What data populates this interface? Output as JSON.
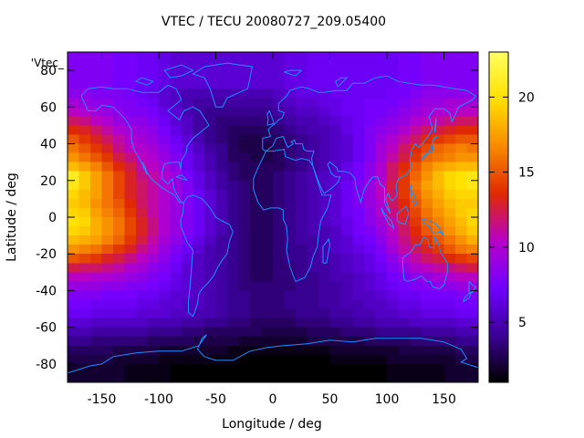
{
  "chart_data": {
    "type": "heatmap",
    "title": "VTEC / TECU 20080727_209.05400",
    "xlabel": "Longitude / deg",
    "ylabel": "Latitude / deg",
    "legend_label": "'Vtec_",
    "xlim": [
      -180,
      180
    ],
    "ylim": [
      -90,
      90
    ],
    "x_ticks": [
      -150,
      -100,
      -50,
      0,
      50,
      100,
      150
    ],
    "y_ticks": [
      -80,
      -60,
      -40,
      -20,
      0,
      20,
      40,
      60,
      80
    ],
    "colorbar": {
      "range": [
        1,
        23
      ],
      "ticks": [
        5,
        10,
        15,
        20
      ],
      "palette": [
        "#000000",
        "#3b0096",
        "#7000ff",
        "#b800c8",
        "#e02a00",
        "#f88a00",
        "#ffe000",
        "#ffff60"
      ]
    },
    "grid": false,
    "overlay": "coastlines",
    "coastline_color": "#1e90ff",
    "longitudes": [
      -175,
      -165,
      -155,
      -145,
      -135,
      -125,
      -115,
      -105,
      -95,
      -85,
      -75,
      -65,
      -55,
      -45,
      -35,
      -25,
      -15,
      -5,
      5,
      15,
      25,
      35,
      45,
      55,
      65,
      75,
      85,
      95,
      105,
      115,
      125,
      135,
      145,
      155,
      165,
      175
    ],
    "latitudes": [
      87.5,
      82.5,
      77.5,
      72.5,
      67.5,
      62.5,
      57.5,
      52.5,
      47.5,
      42.5,
      37.5,
      32.5,
      27.5,
      22.5,
      17.5,
      12.5,
      7.5,
      2.5,
      -2.5,
      -7.5,
      -12.5,
      -17.5,
      -22.5,
      -27.5,
      -32.5,
      -37.5,
      -42.5,
      -47.5,
      -52.5,
      -57.5,
      -62.5,
      -67.5,
      -72.5,
      -77.5,
      -82.5,
      -87.5
    ],
    "vtec": [
      [
        8,
        8,
        8,
        8,
        7.5,
        7.5,
        7,
        7,
        6.5,
        6,
        6,
        6,
        6,
        6,
        6,
        6,
        6,
        6,
        6,
        6.5,
        6.5,
        7,
        7,
        7,
        7,
        7,
        7,
        7,
        7,
        7.5,
        7.5,
        8,
        8,
        8,
        8,
        8
      ],
      [
        8,
        8,
        8,
        8,
        7.5,
        7.5,
        7,
        7,
        6.5,
        6,
        6,
        6,
        6,
        6,
        6,
        6,
        6,
        6,
        6,
        6.5,
        6.5,
        7,
        7,
        7,
        7,
        7,
        7,
        7,
        7,
        7.5,
        7.5,
        8,
        8,
        8,
        8,
        8
      ],
      [
        8,
        8,
        8,
        8,
        7.5,
        7.5,
        7,
        7,
        6.5,
        6,
        6,
        6,
        6,
        6,
        6,
        6,
        6,
        6,
        6,
        6.5,
        6.5,
        7,
        7,
        7,
        7,
        7,
        7,
        7,
        7,
        7.5,
        7.5,
        8,
        8,
        8,
        8,
        8
      ],
      [
        8,
        8,
        8,
        8,
        7.5,
        7.5,
        7,
        7,
        6.5,
        6,
        6,
        6,
        6,
        6,
        6,
        6,
        6,
        6,
        6,
        6.5,
        6.5,
        7,
        7,
        7,
        7,
        7,
        7,
        7,
        7,
        7.5,
        7.5,
        8,
        8,
        8,
        8,
        8
      ],
      [
        8.5,
        8.5,
        8,
        8,
        8,
        7.5,
        7,
        6.5,
        6,
        5.5,
        5,
        5,
        5,
        5,
        5,
        5,
        5,
        5,
        5.5,
        6,
        6.5,
        6.5,
        6.5,
        7,
        7,
        7,
        7,
        7,
        7.5,
        7.5,
        8,
        8.5,
        8.5,
        8.5,
        8.5,
        8.5
      ],
      [
        9.5,
        9,
        8.5,
        8.5,
        8,
        8,
        7.5,
        7,
        6,
        5.5,
        5,
        4.5,
        4.5,
        4.5,
        4.5,
        4.5,
        4.5,
        4.5,
        5,
        5.5,
        6,
        6,
        6.5,
        6.5,
        7,
        7,
        7.5,
        7.5,
        7.5,
        8,
        8.5,
        9,
        9,
        9.5,
        9.5,
        9.5
      ],
      [
        10.5,
        10,
        9.5,
        9,
        8.5,
        8,
        8,
        7.5,
        6.5,
        6,
        5,
        4.5,
        4,
        4,
        4,
        4,
        4,
        4,
        4.5,
        5,
        5.5,
        5.5,
        6,
        6.5,
        7,
        7,
        7.5,
        7.5,
        8,
        8.5,
        9,
        9.5,
        10,
        10,
        10.5,
        10.5
      ],
      [
        12,
        11.5,
        10.5,
        10,
        9,
        8.5,
        8.5,
        8,
        7,
        6,
        5.5,
        4.5,
        4,
        3.5,
        3.5,
        3.5,
        3.5,
        3.5,
        4,
        4.5,
        5,
        5,
        5.5,
        6,
        6.5,
        7,
        7.5,
        8,
        8.5,
        9,
        10,
        10.5,
        11,
        11.5,
        12,
        12
      ],
      [
        13.5,
        13,
        12,
        11,
        10,
        9.5,
        9,
        8.5,
        7.5,
        6.5,
        5.5,
        4.5,
        4,
        3.5,
        3,
        3,
        3,
        3,
        3.5,
        4,
        4.5,
        5,
        5,
        5.5,
        6.5,
        7,
        8,
        8.5,
        9,
        10,
        11,
        12,
        12.5,
        13,
        13.5,
        13.5
      ],
      [
        15,
        14,
        13,
        12,
        11,
        10,
        9.5,
        9,
        8,
        7,
        6,
        5,
        4,
        3.5,
        3,
        2.5,
        2.5,
        3,
        3,
        3.5,
        4,
        4.5,
        5,
        5.5,
        6,
        7,
        8,
        9,
        10,
        11,
        12,
        13.5,
        14,
        14.5,
        15,
        15
      ],
      [
        16,
        15,
        14,
        13,
        11.5,
        10.5,
        10,
        9.5,
        8.5,
        7.5,
        6.5,
        5.5,
        4.5,
        4,
        3,
        2.5,
        2.5,
        2.5,
        3,
        3.5,
        4,
        4.5,
        5,
        5.5,
        6,
        7,
        8,
        9.5,
        10.5,
        12,
        13.5,
        14.5,
        15.5,
        16,
        16.5,
        16
      ],
      [
        17,
        16,
        15,
        14,
        12.5,
        11.5,
        10.5,
        10,
        9,
        8,
        7,
        6,
        5,
        4,
        3,
        3,
        2.5,
        2.5,
        3,
        3.5,
        4,
        4.5,
        5,
        5.5,
        6,
        7,
        8,
        9.5,
        11,
        12.5,
        14,
        15.5,
        16,
        16.5,
        17,
        17
      ],
      [
        18.5,
        17.5,
        16.5,
        15,
        13.5,
        12.5,
        11,
        10.5,
        9.5,
        8.5,
        7,
        6,
        5,
        4,
        3.5,
        3,
        3,
        3,
        3,
        3.5,
        4,
        4.5,
        5,
        5.5,
        6.5,
        7.5,
        8.5,
        10,
        12,
        13.5,
        15,
        16.5,
        17.5,
        18,
        18.5,
        18.5
      ],
      [
        21,
        19,
        17.5,
        16,
        14.5,
        13,
        11.5,
        11,
        10,
        9,
        7.5,
        6.5,
        5.5,
        4.5,
        3.5,
        3,
        3,
        3,
        3.5,
        4,
        4.5,
        5,
        5.5,
        6,
        6.5,
        7.5,
        8.5,
        10,
        12,
        14,
        15.5,
        17,
        18.5,
        19.5,
        20,
        20.5
      ],
      [
        20.5,
        19,
        17.5,
        16,
        14.5,
        13,
        12,
        11,
        10,
        9,
        8,
        6.5,
        5.5,
        4.5,
        4,
        3.5,
        3,
        3,
        3.5,
        4,
        4.5,
        5,
        5.5,
        6,
        7,
        8,
        9,
        10.5,
        12.5,
        14,
        16,
        17.5,
        18.5,
        19.5,
        20,
        20.5
      ],
      [
        19.5,
        18.5,
        17.5,
        16,
        14.5,
        13,
        12,
        11,
        10,
        9,
        8,
        7,
        6,
        5,
        4,
        3.5,
        3,
        3,
        3.5,
        4,
        4.5,
        5,
        5.5,
        6,
        7,
        8,
        9,
        10.5,
        12,
        14,
        15.5,
        17,
        18,
        19,
        19.5,
        19.5
      ],
      [
        19,
        18.5,
        17,
        16,
        15,
        13.5,
        12,
        11,
        10,
        9,
        8,
        7,
        6,
        5,
        4,
        3.5,
        3,
        3,
        3.5,
        4,
        4.5,
        5,
        5.5,
        6,
        7,
        8,
        9,
        10,
        12,
        13.5,
        15,
        16.5,
        17.5,
        18.5,
        19,
        19
      ],
      [
        19.5,
        19,
        17.5,
        16.5,
        15.5,
        14,
        12.5,
        11,
        10,
        9,
        8,
        7,
        6,
        5,
        4,
        3.5,
        3,
        3,
        3.5,
        4,
        4.5,
        5,
        5.5,
        6,
        7,
        7.5,
        8.5,
        10,
        11.5,
        13,
        14.5,
        16,
        17,
        18,
        19,
        19.5
      ],
      [
        20,
        19.5,
        18,
        17,
        16,
        14.5,
        13,
        11.5,
        10,
        9,
        8,
        7,
        6,
        5,
        4,
        3.5,
        3,
        3,
        3.5,
        4,
        4.5,
        5,
        5.5,
        6,
        6.5,
        7.5,
        8.5,
        9.5,
        11,
        12.5,
        14,
        15.5,
        16.5,
        17.5,
        18.5,
        19.5
      ],
      [
        19.5,
        19,
        18,
        17,
        16,
        14.5,
        13,
        11.5,
        10,
        9,
        8,
        7,
        6,
        5,
        4,
        3.5,
        3,
        3,
        3.5,
        4,
        4.5,
        5,
        5,
        5.5,
        6.5,
        7.5,
        8,
        9,
        10.5,
        12,
        13.5,
        15,
        16,
        17,
        18,
        19
      ],
      [
        18.5,
        18,
        17.5,
        16.5,
        15.5,
        14,
        12.5,
        11,
        9.5,
        8.5,
        7.5,
        6.5,
        5.5,
        4.5,
        4,
        3.5,
        3,
        3,
        3.5,
        4,
        4.5,
        4.5,
        5,
        5.5,
        6,
        7,
        7.5,
        8.5,
        10,
        11.5,
        13,
        14,
        15,
        16,
        17,
        18
      ],
      [
        17,
        16.5,
        16,
        15,
        14,
        13,
        11.5,
        10.5,
        9,
        8,
        7,
        6,
        5,
        4.5,
        4,
        3.5,
        3,
        3,
        3.5,
        4,
        4,
        4.5,
        5,
        5.5,
        6,
        6.5,
        7,
        8,
        9.5,
        11,
        12,
        13,
        14,
        15,
        16,
        16.5
      ],
      [
        15,
        14.5,
        14,
        13,
        12.5,
        11.5,
        10.5,
        9.5,
        8.5,
        7.5,
        6.5,
        5.5,
        5,
        4.5,
        4,
        3.5,
        3,
        3,
        3.5,
        4,
        4,
        4.5,
        5,
        5,
        5.5,
        6,
        6.5,
        7.5,
        8.5,
        10,
        11,
        12,
        12.5,
        13.5,
        14,
        14.5
      ],
      [
        12.5,
        12,
        12,
        11.5,
        11,
        10,
        9.5,
        8.5,
        8,
        7,
        6,
        5.5,
        5,
        4.5,
        4,
        3.5,
        3,
        3,
        3.5,
        3.5,
        4,
        4.5,
        4.5,
        5,
        5.5,
        6,
        6.5,
        7,
        8,
        9,
        10,
        10.5,
        11,
        11.5,
        12,
        12.5
      ],
      [
        10.5,
        10.5,
        10,
        10,
        9.5,
        9,
        8.5,
        8,
        7.5,
        6.5,
        6,
        5.5,
        5,
        4.5,
        4,
        3.5,
        3,
        3,
        3.5,
        3.5,
        4,
        4,
        4.5,
        5,
        5,
        5.5,
        6,
        6.5,
        7.5,
        8,
        8.5,
        9,
        9.5,
        10,
        10.5,
        10.5
      ],
      [
        9,
        9,
        9,
        8.5,
        8.5,
        8,
        8,
        7.5,
        7,
        6.5,
        6,
        5.5,
        5,
        4.5,
        4,
        3.5,
        3.5,
        3.5,
        3.5,
        3.5,
        4,
        4,
        4.5,
        4.5,
        5,
        5.5,
        6,
        6.5,
        7,
        7.5,
        8,
        8,
        8.5,
        8.5,
        9,
        9
      ],
      [
        8,
        8,
        8,
        7.5,
        7.5,
        7.5,
        7,
        7,
        6.5,
        6,
        6,
        5.5,
        5,
        4.5,
        4,
        4,
        3.5,
        3.5,
        3.5,
        4,
        4,
        4,
        4.5,
        4.5,
        5,
        5.5,
        5.5,
        6,
        6.5,
        7,
        7,
        7.5,
        7.5,
        7.5,
        8,
        8
      ],
      [
        7.5,
        7.5,
        7,
        7,
        7,
        7,
        6.5,
        6.5,
        6,
        6,
        5.5,
        5.5,
        5,
        4.5,
        4,
        4,
        3.5,
        3.5,
        3.5,
        4,
        4,
        4,
        4.5,
        4.5,
        5,
        5,
        5.5,
        5.5,
        6,
        6.5,
        6.5,
        7,
        7,
        7,
        7.5,
        7.5
      ],
      [
        7,
        7,
        6.5,
        6.5,
        6.5,
        6.5,
        6,
        6,
        6,
        5.5,
        5.5,
        5,
        5,
        4.5,
        4,
        4,
        3.5,
        3.5,
        3.5,
        3.5,
        4,
        4,
        4,
        4.5,
        4.5,
        5,
        5,
        5.5,
        5.5,
        6,
        6,
        6.5,
        6.5,
        6.5,
        7,
        7
      ],
      [
        6,
        6,
        5.5,
        5.5,
        5.5,
        5.5,
        5.5,
        5,
        5,
        5,
        4.5,
        4.5,
        4,
        4,
        3.5,
        3.5,
        3,
        3,
        3,
        3,
        3.5,
        3.5,
        3.5,
        4,
        4,
        4.5,
        4.5,
        5,
        5,
        5,
        5.5,
        5.5,
        5.5,
        5.5,
        6,
        6
      ],
      [
        5,
        5,
        4.5,
        4.5,
        4.5,
        4.5,
        4.5,
        4,
        4,
        4,
        3.5,
        3.5,
        3,
        3,
        3,
        3,
        3,
        2.5,
        2.5,
        2.5,
        2.5,
        3,
        3,
        3,
        3.5,
        3.5,
        3.5,
        4,
        4,
        4,
        4,
        4.5,
        4.5,
        4.5,
        5,
        5
      ],
      [
        4,
        4,
        3.5,
        3.5,
        3.5,
        3.5,
        3.5,
        3,
        3,
        3,
        3,
        2.5,
        2.5,
        2.5,
        2.5,
        2,
        2,
        2,
        2,
        2,
        2,
        2.5,
        2.5,
        2.5,
        2.5,
        2.5,
        3,
        3,
        3,
        3,
        3.5,
        3.5,
        3.5,
        3.5,
        4,
        4
      ],
      [
        3,
        3,
        3,
        3,
        2.5,
        2.5,
        2.5,
        2.5,
        2,
        2,
        2,
        2,
        2,
        2,
        1.5,
        1.5,
        1.5,
        1.5,
        1.5,
        1.5,
        1.5,
        1.5,
        1.5,
        2,
        2,
        2,
        2,
        2,
        2,
        2.5,
        2.5,
        2.5,
        2.5,
        2.5,
        3,
        3
      ],
      [
        2.5,
        2.5,
        2.5,
        2.5,
        2,
        2,
        2,
        2,
        1.5,
        1.5,
        1.5,
        1.5,
        1.5,
        1.5,
        1.5,
        1,
        1,
        1,
        1,
        1,
        1,
        1,
        1,
        1.5,
        1.5,
        1.5,
        1.5,
        1.5,
        2,
        2,
        2,
        2,
        2,
        2,
        2.5,
        2.5
      ],
      [
        2,
        2,
        2,
        2,
        2,
        1.5,
        1.5,
        1.5,
        1.5,
        1,
        1,
        1,
        1,
        1,
        1,
        1,
        1,
        1,
        1,
        1,
        1,
        1,
        1,
        1,
        1,
        1,
        1,
        1,
        1.5,
        1.5,
        1.5,
        1.5,
        1.5,
        2,
        2,
        2
      ],
      [
        2,
        2,
        2,
        2,
        2,
        1.5,
        1.5,
        1.5,
        1.5,
        1,
        1,
        1,
        1,
        1,
        1,
        1,
        1,
        1,
        1,
        1,
        1,
        1,
        1,
        1,
        1,
        1,
        1,
        1,
        1.5,
        1.5,
        1.5,
        1.5,
        1.5,
        2,
        2,
        2
      ]
    ]
  }
}
